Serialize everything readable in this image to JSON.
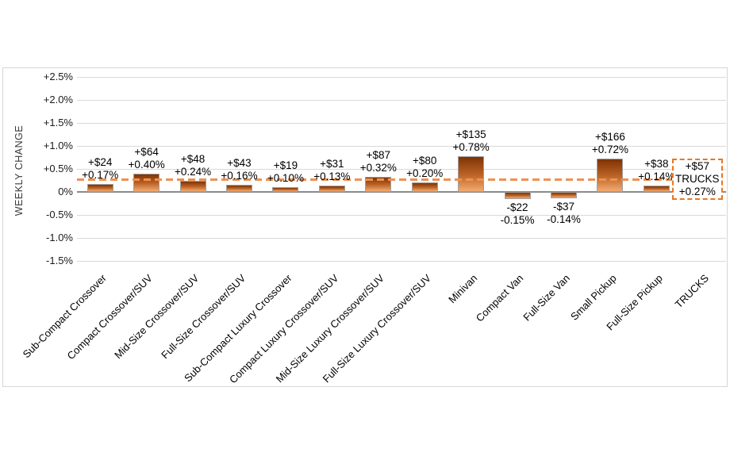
{
  "chart_data": {
    "type": "bar",
    "title": "",
    "xlabel": "",
    "ylabel": "WEEKLY CHANGE",
    "ylim": [
      -1.5,
      2.5
    ],
    "grid": true,
    "legend": "none",
    "yticks": [
      {
        "label": "+2.5%",
        "value": 2.5
      },
      {
        "label": "+2.0%",
        "value": 2.0
      },
      {
        "label": "+1.5%",
        "value": 1.5
      },
      {
        "label": "+1.0%",
        "value": 1.0
      },
      {
        "label": "+0.5%",
        "value": 0.5
      },
      {
        "label": "0%",
        "value": 0.0
      },
      {
        "label": "-0.5%",
        "value": -0.5
      },
      {
        "label": "-1.0%",
        "value": -1.0
      },
      {
        "label": "-1.5%",
        "value": -1.5
      }
    ],
    "categories": [
      {
        "name": "Sub-Compact Crossover",
        "dollar": "+$24",
        "pct_label": "+0.17%",
        "value": 0.17
      },
      {
        "name": "Compact Crossover/SUV",
        "dollar": "+$64",
        "pct_label": "+0.40%",
        "value": 0.4
      },
      {
        "name": "Mid-Size Crossover/SUV",
        "dollar": "+$48",
        "pct_label": "+0.24%",
        "value": 0.24
      },
      {
        "name": "Full-Size Crossover/SUV",
        "dollar": "+$43",
        "pct_label": "+0.16%",
        "value": 0.16
      },
      {
        "name": "Sub-Compact Luxury Crossover",
        "dollar": "+$19",
        "pct_label": "+0.10%",
        "value": 0.1
      },
      {
        "name": "Compact Luxury Crossover/SUV",
        "dollar": "+$31",
        "pct_label": "+0.13%",
        "value": 0.13
      },
      {
        "name": "Mid-Size Luxury Crossover/SUV",
        "dollar": "+$87",
        "pct_label": "+0.32%",
        "value": 0.32
      },
      {
        "name": "Full-Size Luxury Crossover/SUV",
        "dollar": "+$80",
        "pct_label": "+0.20%",
        "value": 0.2
      },
      {
        "name": "Minivan",
        "dollar": "+$135",
        "pct_label": "+0.78%",
        "value": 0.78
      },
      {
        "name": "Compact Van",
        "dollar": "-$22",
        "pct_label": "-0.15%",
        "value": -0.15
      },
      {
        "name": "Full-Size Van",
        "dollar": "-$37",
        "pct_label": "-0.14%",
        "value": -0.14
      },
      {
        "name": "Small Pickup",
        "dollar": "+$166",
        "pct_label": "+0.72%",
        "value": 0.72
      },
      {
        "name": "Full-Size Pickup",
        "dollar": "+$38",
        "pct_label": "+0.14%",
        "value": 0.14
      },
      {
        "name": "TRUCKS",
        "summary_box": true,
        "dollar": "+$57",
        "pct_label": "+0.27%",
        "value": 0.27
      }
    ],
    "reference_line": {
      "value": 0.27,
      "series": "TRUCKS",
      "style": "dashed"
    },
    "colors": {
      "bar_gradient_top": "#7f3304",
      "bar_gradient_mid": "#bb6326",
      "bar_gradient_bottom": "#f3aa6f",
      "bar_border": "#a0a0a0",
      "gridline": "#d9d9d9",
      "zero_axis": "#8a8a8a",
      "dashed_line": "#ee9150",
      "summary_box_border": "#e87722",
      "text": "#000000"
    }
  }
}
